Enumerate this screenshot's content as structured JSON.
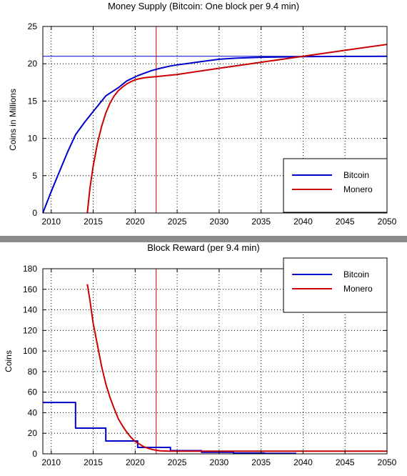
{
  "chart_data": [
    {
      "type": "line",
      "title": "Money Supply (Bitcoin: One block per 9.4 min)",
      "xlabel": "",
      "ylabel": "Coins in Millions",
      "xlim": [
        2009,
        2050
      ],
      "ylim": [
        0,
        25
      ],
      "xticks": [
        2010,
        2015,
        2020,
        2025,
        2030,
        2035,
        2040,
        2045,
        2050
      ],
      "yticks": [
        0,
        5,
        10,
        15,
        20,
        25
      ],
      "grid": true,
      "legend_position": "bottom-right",
      "reference_lines": [
        {
          "orientation": "horizontal",
          "y": 21,
          "color": "#0000cc"
        },
        {
          "orientation": "vertical",
          "x": 2022.5,
          "color": "#cc0000"
        }
      ],
      "series": [
        {
          "name": "Bitcoin",
          "color": "#0000cc",
          "x": [
            2009,
            2010,
            2011,
            2012,
            2012.9,
            2014,
            2015,
            2016.5,
            2018,
            2019,
            2020.3,
            2021,
            2022,
            2023,
            2024.2,
            2025,
            2026,
            2027.9,
            2030,
            2032,
            2035,
            2040,
            2045,
            2050
          ],
          "y": [
            0,
            2.9,
            5.6,
            8.3,
            10.5,
            12.2,
            13.6,
            15.7,
            16.8,
            17.7,
            18.4,
            18.7,
            19.1,
            19.4,
            19.7,
            19.85,
            20.0,
            20.3,
            20.6,
            20.75,
            20.87,
            20.96,
            20.99,
            21.0
          ]
        },
        {
          "name": "Monero",
          "color": "#cc0000",
          "x": [
            2014.3,
            2014.6,
            2015,
            2015.5,
            2016,
            2016.5,
            2017,
            2017.5,
            2018,
            2018.5,
            2019,
            2019.5,
            2020,
            2020.5,
            2021,
            2021.5,
            2022,
            2023,
            2024,
            2025,
            2030,
            2035,
            2040,
            2045,
            2050
          ],
          "y": [
            0,
            3.2,
            6.3,
            9.3,
            11.6,
            13.4,
            14.7,
            15.7,
            16.4,
            16.9,
            17.3,
            17.6,
            17.85,
            18.0,
            18.1,
            18.18,
            18.22,
            18.33,
            18.45,
            18.55,
            19.4,
            20.2,
            21.0,
            21.8,
            22.6
          ]
        }
      ]
    },
    {
      "type": "line",
      "title": "Block Reward (per 9.4 min)",
      "xlabel": "",
      "ylabel": "Coins",
      "xlim": [
        2009,
        2050
      ],
      "ylim": [
        0,
        180
      ],
      "xticks": [
        2010,
        2015,
        2020,
        2025,
        2030,
        2035,
        2040,
        2045,
        2050
      ],
      "yticks": [
        0,
        20,
        40,
        60,
        80,
        100,
        120,
        140,
        160,
        180
      ],
      "grid": true,
      "legend_position": "top-right",
      "reference_lines": [
        {
          "orientation": "vertical",
          "x": 2022.5,
          "color": "#cc0000"
        }
      ],
      "series": [
        {
          "name": "Bitcoin",
          "color": "#0000cc",
          "x": [
            2009,
            2012.9,
            2012.9,
            2016.5,
            2016.5,
            2020.3,
            2020.3,
            2024.2,
            2024.2,
            2027.9,
            2027.9,
            2031.7,
            2031.7,
            2035.4,
            2035.4,
            2039.2
          ],
          "y": [
            50,
            50,
            25,
            25,
            12.5,
            12.5,
            6.25,
            6.25,
            3.125,
            3.125,
            1.5625,
            1.5625,
            0.78,
            0.78,
            0.39,
            0.39
          ]
        },
        {
          "name": "Monero",
          "color": "#cc0000",
          "x": [
            2014.3,
            2014.6,
            2015,
            2015.5,
            2016,
            2016.5,
            2017,
            2017.5,
            2018,
            2018.5,
            2019,
            2019.5,
            2020,
            2020.5,
            2021,
            2021.5,
            2022,
            2022.5,
            2023,
            2024,
            2025,
            2030,
            2035,
            2040,
            2045,
            2050
          ],
          "y": [
            165,
            150,
            127,
            106,
            85,
            68,
            55,
            44,
            34,
            27,
            21,
            16,
            12,
            9.5,
            7.0,
            5.5,
            4.3,
            3.5,
            3.0,
            2.6,
            2.6,
            2.6,
            2.6,
            2.6,
            2.6,
            2.6
          ]
        }
      ]
    }
  ]
}
